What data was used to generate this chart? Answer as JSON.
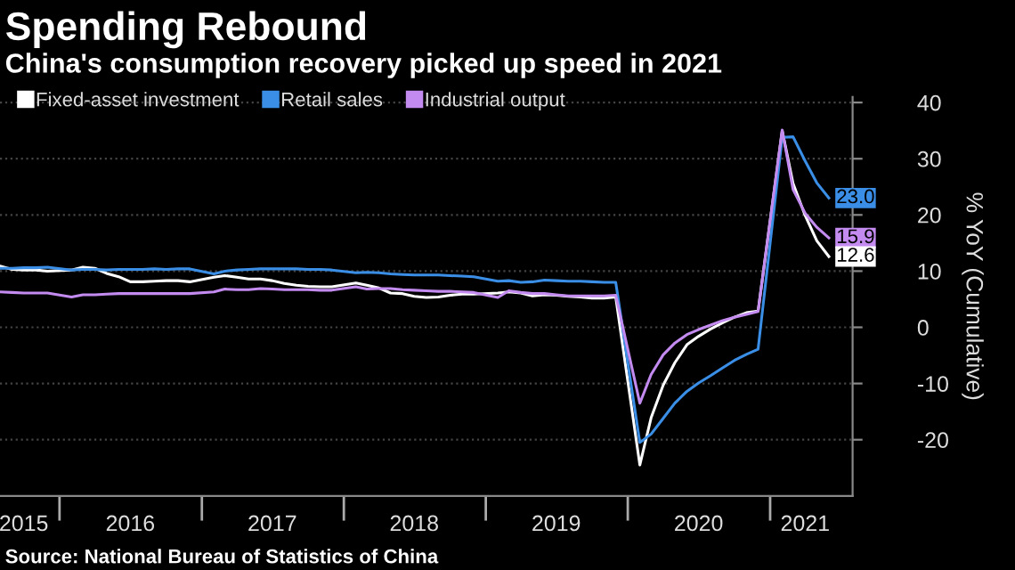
{
  "chart_data": {
    "type": "line",
    "title": "Spending Rebound",
    "subtitle": "China's consumption recovery picked up speed in 2021",
    "ylabel": "% YoY (Cumulative)",
    "x": [
      "2015-08",
      "2015-09",
      "2015-10",
      "2015-11",
      "2015-12",
      "2016-02",
      "2016-03",
      "2016-04",
      "2016-05",
      "2016-06",
      "2016-07",
      "2016-08",
      "2016-09",
      "2016-10",
      "2016-11",
      "2016-12",
      "2017-02",
      "2017-03",
      "2017-04",
      "2017-05",
      "2017-06",
      "2017-07",
      "2017-08",
      "2017-09",
      "2017-10",
      "2017-11",
      "2017-12",
      "2018-02",
      "2018-03",
      "2018-04",
      "2018-05",
      "2018-06",
      "2018-07",
      "2018-08",
      "2018-09",
      "2018-10",
      "2018-11",
      "2018-12",
      "2019-02",
      "2019-03",
      "2019-04",
      "2019-05",
      "2019-06",
      "2019-07",
      "2019-08",
      "2019-09",
      "2019-10",
      "2019-11",
      "2019-12",
      "2020-02",
      "2020-03",
      "2020-04",
      "2020-05",
      "2020-06",
      "2020-07",
      "2020-08",
      "2020-09",
      "2020-10",
      "2020-11",
      "2020-12",
      "2021-02",
      "2021-03",
      "2021-04",
      "2021-05",
      "2021-06"
    ],
    "series": [
      {
        "name": "Fixed-asset investment",
        "color": "#ffffff",
        "values": [
          10.9,
          10.3,
          10.2,
          10.2,
          10.0,
          10.2,
          10.7,
          10.5,
          9.6,
          9.0,
          8.1,
          8.1,
          8.2,
          8.3,
          8.3,
          8.1,
          8.9,
          9.2,
          8.9,
          8.6,
          8.6,
          8.3,
          7.8,
          7.5,
          7.3,
          7.2,
          7.2,
          7.9,
          7.5,
          7.0,
          6.1,
          6.0,
          5.5,
          5.3,
          5.4,
          5.7,
          5.9,
          5.9,
          6.1,
          6.3,
          6.1,
          5.6,
          5.8,
          5.7,
          5.5,
          5.4,
          5.2,
          5.2,
          5.4,
          -24.5,
          -16.1,
          -10.3,
          -6.3,
          -3.1,
          -1.6,
          -0.3,
          0.8,
          1.8,
          2.6,
          2.9,
          35.0,
          25.6,
          19.9,
          15.4,
          12.6
        ]
      },
      {
        "name": "Retail sales",
        "color": "#3a8ee6",
        "values": [
          10.5,
          10.5,
          10.6,
          10.6,
          10.7,
          10.2,
          10.3,
          10.3,
          10.2,
          10.3,
          10.3,
          10.3,
          10.4,
          10.3,
          10.4,
          10.4,
          9.5,
          10.0,
          10.2,
          10.3,
          10.4,
          10.4,
          10.4,
          10.4,
          10.3,
          10.3,
          10.2,
          9.7,
          9.8,
          9.7,
          9.5,
          9.4,
          9.3,
          9.3,
          9.3,
          9.2,
          9.1,
          9.0,
          8.2,
          8.3,
          8.0,
          8.1,
          8.4,
          8.3,
          8.2,
          8.2,
          8.1,
          8.0,
          8.0,
          -20.5,
          -19.0,
          -16.2,
          -13.5,
          -11.4,
          -9.9,
          -8.6,
          -7.2,
          -5.9,
          -4.8,
          -3.9,
          33.8,
          33.9,
          29.6,
          25.7,
          23.0
        ]
      },
      {
        "name": "Industrial output",
        "color": "#c38af0",
        "values": [
          6.3,
          6.2,
          6.1,
          6.1,
          6.1,
          5.4,
          5.8,
          5.8,
          5.9,
          6.0,
          6.0,
          6.0,
          6.0,
          6.0,
          6.0,
          6.0,
          6.3,
          6.8,
          6.7,
          6.7,
          6.9,
          6.8,
          6.7,
          6.7,
          6.7,
          6.6,
          6.6,
          7.2,
          6.8,
          6.9,
          6.9,
          6.7,
          6.6,
          6.5,
          6.4,
          6.4,
          6.3,
          6.2,
          5.3,
          6.5,
          6.2,
          6.0,
          6.0,
          5.8,
          5.6,
          5.6,
          5.6,
          5.6,
          5.7,
          -13.5,
          -8.4,
          -4.9,
          -2.8,
          -1.3,
          -0.4,
          0.4,
          1.2,
          1.8,
          2.3,
          2.8,
          35.1,
          24.5,
          20.3,
          17.8,
          15.9
        ]
      }
    ],
    "annotations": [
      {
        "text": "23.0",
        "x": "2021-06",
        "y": 23.0
      },
      {
        "text": "15.9",
        "x": "2021-06",
        "y": 15.9
      },
      {
        "text": "12.6",
        "x": "2021-06",
        "y": 12.6
      },
      "Source: National Bureau of Statistics of China"
    ],
    "xlim": [
      "2015-08",
      "2021-08"
    ],
    "xticks": [
      {
        "value": "2016-01",
        "label": null
      },
      {
        "value": "2017-01",
        "label": null
      },
      {
        "value": "2018-01",
        "label": null
      },
      {
        "value": "2019-01",
        "label": null
      },
      {
        "value": "2020-01",
        "label": null
      },
      {
        "value": "2021-01",
        "label": null
      },
      {
        "value": "2015-10",
        "label": "2015"
      },
      {
        "value": "2016-07",
        "label": "2016"
      },
      {
        "value": "2017-07",
        "label": "2017"
      },
      {
        "value": "2018-07",
        "label": "2018"
      },
      {
        "value": "2019-07",
        "label": "2019"
      },
      {
        "value": "2020-07",
        "label": "2020"
      },
      {
        "value": "2021-04",
        "label": "2021"
      }
    ],
    "ylim": [
      -30,
      41
    ],
    "yticks": [
      -20,
      -10,
      0,
      10,
      20,
      30,
      40
    ],
    "grid": "y",
    "legend": "top left",
    "line_style": "solid",
    "marker": "none"
  }
}
